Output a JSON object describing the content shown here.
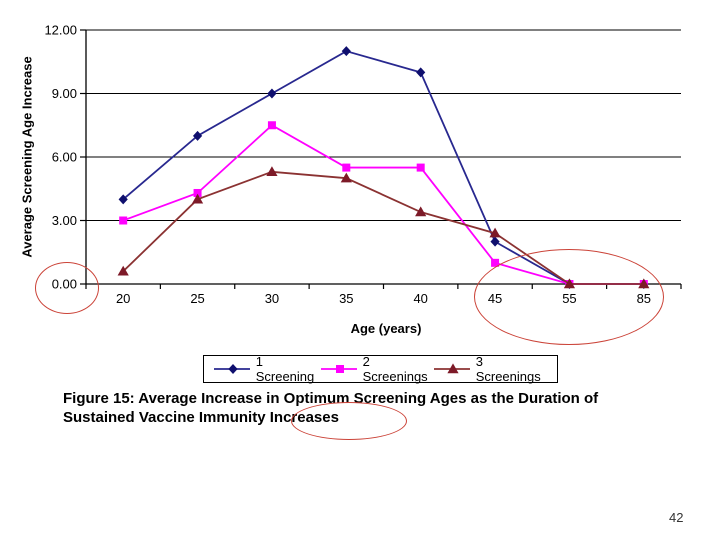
{
  "page": {
    "number": "42"
  },
  "caption": {
    "lines": [
      "Figure 15: Average Increase in Optimum Screening Ages as the Duration of",
      "Sustained Vaccine Immunity Increases"
    ],
    "circled_word": "Increases"
  },
  "annotations": {
    "color": "#cb4338",
    "ellipses": [
      "origin-zero-circle",
      "upper-ages-circle",
      "caption-increases-circle"
    ]
  },
  "chart_data": {
    "type": "line",
    "title": "",
    "xlabel": "Age (years)",
    "ylabel": "Average Screening Age Increase",
    "categories": [
      "20",
      "25",
      "30",
      "35",
      "40",
      "45",
      "55",
      "85"
    ],
    "y_ticks": [
      0,
      3,
      6,
      9,
      12
    ],
    "y_tick_labels": [
      "0.00",
      "3.00",
      "6.00",
      "9.00",
      "12.00"
    ],
    "ylim": [
      0,
      12
    ],
    "grid": "horizontal-major",
    "legend_position": "bottom",
    "series": [
      {
        "name": "1 Screening",
        "marker": "diamond",
        "line_color": "#28288f",
        "marker_color": "#0f0f6e",
        "values": [
          4.0,
          7.0,
          9.0,
          11.0,
          10.0,
          2.0,
          0.0,
          0.0
        ]
      },
      {
        "name": "2 Screenings",
        "marker": "square",
        "line_color": "#ff00ff",
        "marker_color": "#ff00ff",
        "values": [
          3.0,
          4.3,
          7.5,
          5.5,
          5.5,
          1.0,
          0.0,
          0.0
        ]
      },
      {
        "name": "3 Screenings",
        "marker": "triangle",
        "line_color": "#8b3232",
        "marker_color": "#7d1a28",
        "values": [
          0.6,
          4.0,
          5.3,
          5.0,
          3.4,
          2.4,
          0.0,
          0.0
        ]
      }
    ]
  }
}
